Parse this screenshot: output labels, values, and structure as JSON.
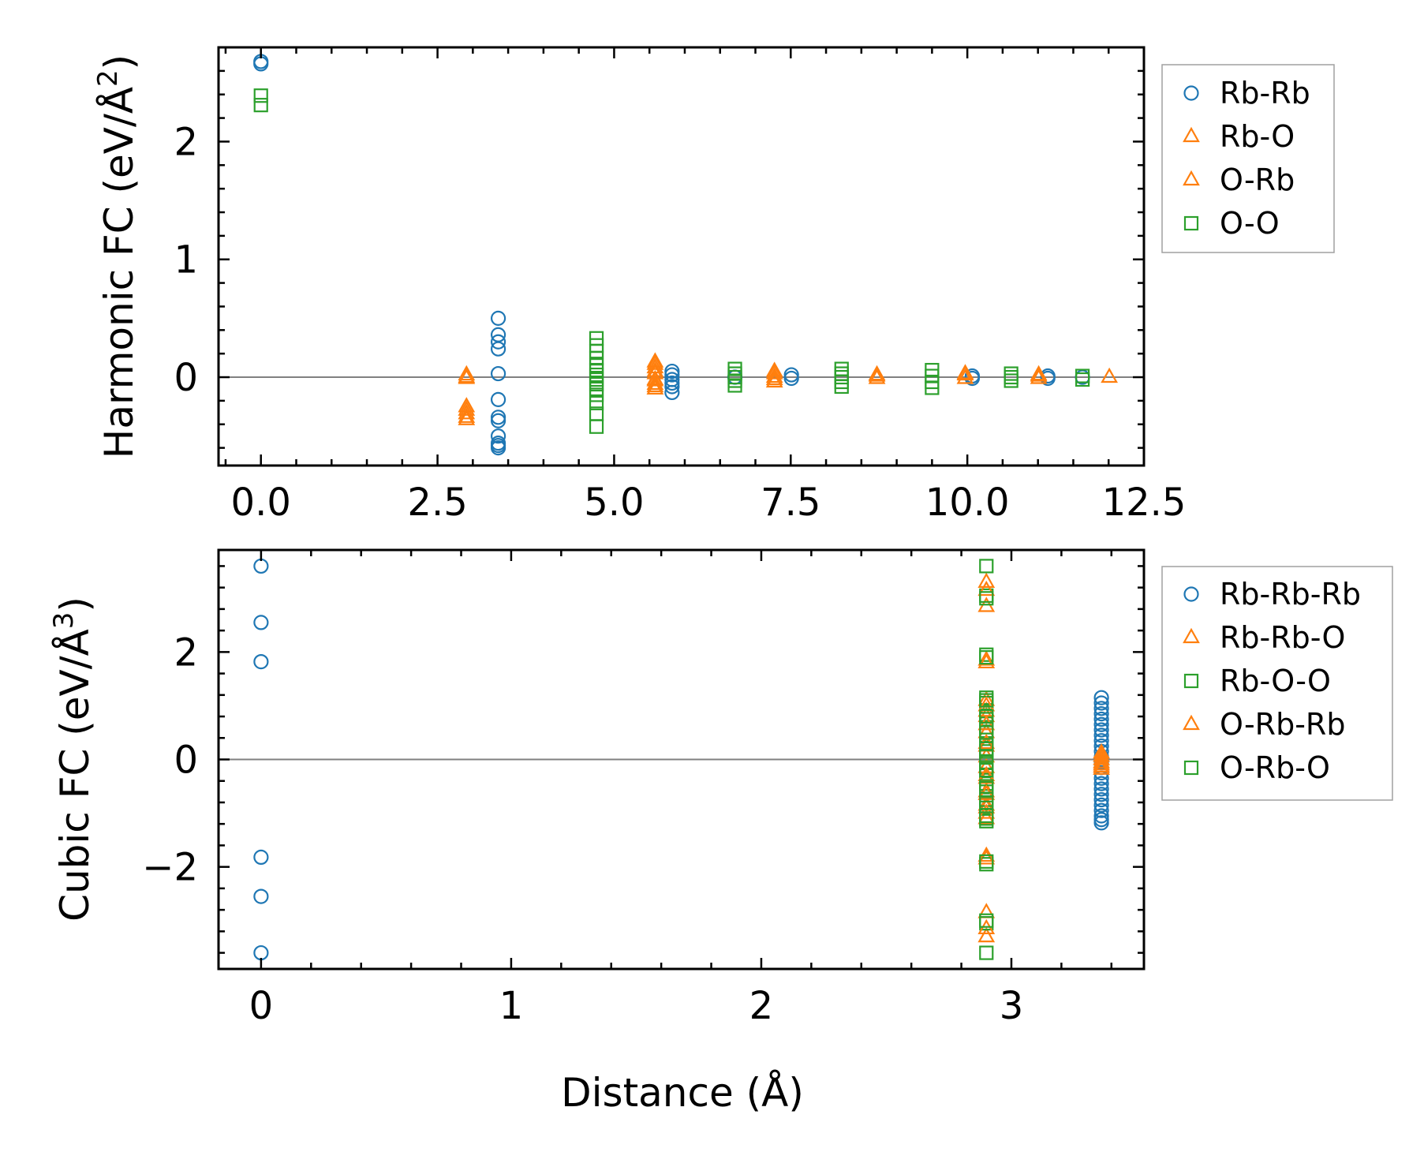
{
  "colors": {
    "blue": "#1f77b4",
    "orange": "#ff7f0e",
    "green": "#2ca02c",
    "zero_line": "#808080",
    "axes": "#000000"
  },
  "chart_data": [
    {
      "type": "scatter",
      "title": "",
      "xlabel": "",
      "ylabel": "Harmonic FC (eV/Å²)",
      "ylabel_main": "Harmonic FC (eV/Å",
      "ylabel_sup": "2",
      "ylabel_close": ")",
      "xlim": [
        -0.6,
        12.5
      ],
      "ylim": [
        -0.75,
        2.8
      ],
      "xticks": [
        0,
        2.5,
        5,
        7.5,
        10,
        12.5
      ],
      "xtick_labels": [
        "0.0",
        "2.5",
        "5.0",
        "7.5",
        "10.0",
        "12.5"
      ],
      "yticks": [
        0,
        1,
        2
      ],
      "ytick_labels": [
        "0",
        "1",
        "2"
      ],
      "zero_line": true,
      "legend": "outside-right-top",
      "series": [
        {
          "name": "Rb-Rb",
          "marker": "circle",
          "color": "#1f77b4",
          "x": [
            0,
            0,
            3.36,
            3.36,
            3.36,
            3.36,
            3.36,
            3.36,
            3.36,
            3.36,
            3.36,
            3.36,
            3.36,
            3.36,
            5.82,
            5.82,
            5.82,
            5.82,
            5.82,
            5.82,
            6.71,
            7.51,
            7.51,
            10.07,
            10.07,
            11.14,
            11.14,
            11.63
          ],
          "y": [
            2.66,
            2.68,
            0.5,
            0.36,
            0.3,
            0.24,
            0.03,
            -0.19,
            -0.34,
            -0.37,
            -0.5,
            -0.56,
            -0.58,
            -0.6,
            0.05,
            0.02,
            -0.02,
            -0.05,
            -0.08,
            -0.13,
            0.0,
            0.02,
            -0.01,
            0.01,
            -0.01,
            0.01,
            -0.01,
            0.0
          ]
        },
        {
          "name": "Rb-O",
          "marker": "triangle",
          "color": "#ff7f0e",
          "x": [
            2.91,
            2.91,
            2.91,
            2.91,
            2.91,
            5.58,
            5.58,
            5.58,
            5.58,
            5.58,
            5.58,
            7.27,
            7.27,
            7.27,
            8.72,
            8.72,
            9.97,
            9.97,
            11.01,
            11.01,
            12.01
          ],
          "y": [
            0.02,
            -0.01,
            -0.25,
            -0.31,
            -0.36,
            0.13,
            0.08,
            0.03,
            -0.02,
            -0.06,
            -0.1,
            0.05,
            0.0,
            -0.04,
            0.02,
            -0.01,
            0.03,
            -0.01,
            0.02,
            -0.01,
            0.0
          ]
        },
        {
          "name": "O-Rb",
          "marker": "triangle",
          "color": "#ff7f0e",
          "x": [
            2.91,
            2.91,
            2.91,
            5.58,
            5.58,
            5.58,
            5.58,
            7.27,
            7.27,
            8.72,
            9.97,
            11.01
          ],
          "y": [
            0.0,
            -0.28,
            -0.34,
            0.11,
            0.05,
            -0.03,
            -0.08,
            0.03,
            -0.02,
            0.01,
            0.02,
            0.01
          ]
        },
        {
          "name": "O-O",
          "marker": "square",
          "color": "#2ca02c",
          "x": [
            0,
            0,
            4.75,
            4.75,
            4.75,
            4.75,
            4.75,
            4.75,
            4.75,
            4.75,
            4.75,
            4.75,
            4.75,
            4.75,
            4.75,
            4.75,
            6.71,
            6.71,
            6.71,
            6.71,
            6.71,
            8.22,
            8.22,
            8.22,
            8.22,
            8.22,
            9.5,
            9.5,
            9.5,
            9.5,
            10.62,
            10.62,
            10.62,
            11.63,
            11.63
          ],
          "y": [
            2.31,
            2.39,
            0.33,
            0.27,
            0.22,
            0.16,
            0.1,
            0.06,
            0.02,
            -0.02,
            -0.06,
            -0.1,
            -0.15,
            -0.22,
            -0.31,
            -0.42,
            0.07,
            0.03,
            0.0,
            -0.03,
            -0.07,
            0.07,
            0.03,
            0.0,
            -0.04,
            -0.08,
            0.06,
            0.01,
            -0.04,
            -0.09,
            0.03,
            0.0,
            -0.03,
            0.01,
            -0.02
          ]
        }
      ]
    },
    {
      "type": "scatter",
      "title": "",
      "xlabel": "Distance (Å)",
      "ylabel": "Cubic FC (eV/Å³)",
      "ylabel_main": "Cubic FC (eV/Å",
      "ylabel_sup": "3",
      "ylabel_close": ")",
      "xlim": [
        -0.17,
        3.53
      ],
      "ylim": [
        -3.9,
        3.9
      ],
      "xticks": [
        0,
        1,
        2,
        3
      ],
      "xtick_labels": [
        "0",
        "1",
        "2",
        "3"
      ],
      "yticks": [
        -2,
        0,
        2
      ],
      "ytick_labels": [
        "−2",
        "0",
        "2"
      ],
      "zero_line": true,
      "legend": "outside-right-top",
      "series": [
        {
          "name": "Rb-Rb-Rb",
          "marker": "circle",
          "color": "#1f77b4",
          "x": [
            0,
            0,
            0,
            0,
            0,
            0,
            3.36,
            3.36,
            3.36,
            3.36,
            3.36,
            3.36,
            3.36,
            3.36,
            3.36,
            3.36,
            3.36,
            3.36,
            3.36,
            3.36,
            3.36,
            3.36,
            3.36,
            3.36,
            3.36,
            3.36,
            3.36,
            3.36,
            3.36,
            3.36,
            3.36
          ],
          "y": [
            3.6,
            2.55,
            1.82,
            -1.82,
            -2.55,
            -3.6,
            1.15,
            1.05,
            0.95,
            0.85,
            0.75,
            0.65,
            0.55,
            0.45,
            0.35,
            0.25,
            0.15,
            0.05,
            -0.05,
            -0.15,
            -0.25,
            -0.35,
            -0.45,
            -0.55,
            -0.65,
            -0.75,
            -0.85,
            -0.95,
            -1.05,
            -1.12,
            -1.18
          ]
        },
        {
          "name": "Rb-Rb-O",
          "marker": "triangle",
          "color": "#ff7f0e",
          "x": [
            2.9,
            2.9,
            2.9,
            2.9,
            2.9,
            2.9,
            2.9,
            2.9,
            2.9,
            2.9,
            2.9,
            2.9,
            2.9,
            2.9,
            2.9,
            2.9,
            2.9,
            2.9,
            3.36,
            3.36,
            3.36,
            3.36
          ],
          "y": [
            3.3,
            2.85,
            1.85,
            1.1,
            0.8,
            0.5,
            0.25,
            0.05,
            -0.15,
            -0.35,
            -0.6,
            -0.85,
            -1.1,
            -1.85,
            -2.85,
            -3.3,
            0.9,
            -0.9,
            0.12,
            0.0,
            -0.1,
            -0.18
          ]
        },
        {
          "name": "Rb-O-O",
          "marker": "square",
          "color": "#2ca02c",
          "x": [
            2.9,
            2.9,
            2.9,
            2.9,
            2.9,
            2.9,
            2.9,
            2.9,
            2.9,
            2.9,
            2.9,
            2.9,
            2.9,
            2.9,
            2.9,
            2.9,
            2.9,
            2.9,
            2.9,
            2.9,
            2.9,
            2.9,
            2.9,
            2.9
          ],
          "y": [
            3.6,
            3.05,
            1.95,
            1.15,
            1.05,
            0.9,
            0.75,
            0.6,
            0.45,
            0.3,
            0.15,
            0.05,
            -0.05,
            -0.15,
            -0.3,
            -0.45,
            -0.6,
            -0.75,
            -0.9,
            -1.05,
            -1.15,
            -1.95,
            -3.05,
            -3.6
          ]
        },
        {
          "name": "O-Rb-Rb",
          "marker": "triangle",
          "color": "#ff7f0e",
          "x": [
            2.9,
            2.9,
            2.9,
            2.9,
            2.9,
            2.9,
            2.9,
            2.9,
            2.9,
            2.9,
            3.36,
            3.36,
            3.36
          ],
          "y": [
            3.15,
            1.8,
            1.0,
            0.65,
            0.3,
            -0.3,
            -0.65,
            -1.0,
            -1.8,
            -3.15,
            0.06,
            -0.06,
            -0.14
          ]
        },
        {
          "name": "O-Rb-O",
          "marker": "square",
          "color": "#2ca02c",
          "x": [
            2.9,
            2.9,
            2.9,
            2.9,
            2.9,
            2.9,
            2.9,
            2.9,
            2.9,
            2.9,
            2.9,
            2.9
          ],
          "y": [
            3.0,
            1.9,
            1.1,
            0.8,
            0.5,
            0.2,
            -0.2,
            -0.5,
            -0.8,
            -1.1,
            -1.9,
            -3.0
          ]
        }
      ]
    }
  ]
}
